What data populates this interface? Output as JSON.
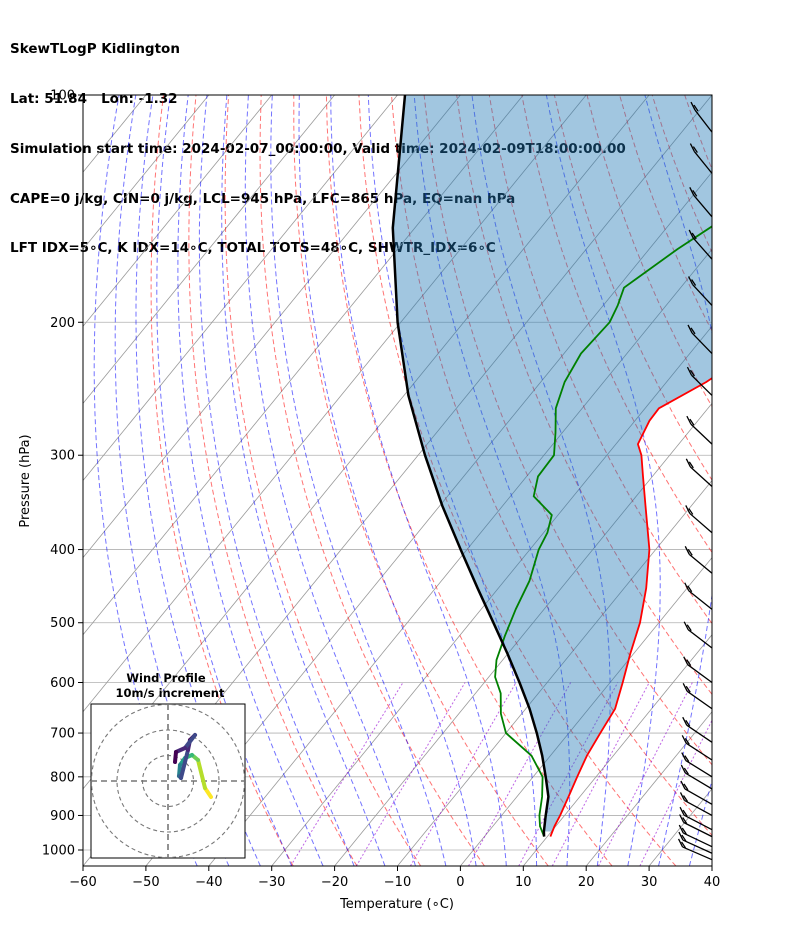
{
  "title_lines": [
    "SkewTLogP Kidlington",
    "Lat: 51.84   Lon: -1.32",
    "Simulation start time: 2024-02-07_00:00:00, Valid time: 2024-02-09T18:00:00.00",
    "CAPE=0 j/kg, CIN=0 j/kg, LCL=945 hPa, LFC=865 hPa, EQ=nan hPa",
    "LFT IDX=5∘C, K IDX=14∘C, TOTAL TOTS=48∘C, SHWTR_IDX=6∘C"
  ],
  "chart_data": {
    "type": "line",
    "xlabel": "Temperature (∘C)",
    "ylabel": "Pressure (hPa)",
    "xlim": [
      -60,
      40
    ],
    "ylim": [
      1050,
      100
    ],
    "y_scale": "log",
    "x_ticks": [
      -60,
      -50,
      -40,
      -30,
      -20,
      -10,
      0,
      10,
      20,
      30,
      40
    ],
    "x_tick_labels": [
      "−60",
      "−50",
      "−40",
      "−30",
      "−20",
      "−10",
      "0",
      "10",
      "20",
      "30",
      "40"
    ],
    "y_ticks": [
      1000,
      900,
      800,
      700,
      600,
      500,
      400,
      300,
      200,
      100
    ],
    "y_tick_labels": [
      "1000",
      "900",
      "800",
      "700",
      "600",
      "500",
      "400",
      "300",
      "200",
      "100"
    ],
    "grid": true,
    "colors": {
      "temperature": "#ff0000",
      "dewpoint": "#008000",
      "parcel": "#000000",
      "cape_fill": "#1f77b4",
      "dry_adiabat": "#ff0000",
      "moist_adiabat": "#0000ff",
      "mixing_ratio": "#9400d3",
      "isotherm": "#999999"
    },
    "series": [
      {
        "key": "temperature",
        "pressure": [
          960,
          930,
          900,
          850,
          800,
          750,
          700,
          650,
          600,
          550,
          500,
          450,
          400,
          350,
          320,
          300,
          290,
          270,
          260,
          240,
          220,
          200,
          180,
          165,
          150,
          140,
          130,
          120,
          110,
          100
        ],
        "temperature": [
          10.5,
          9.8,
          9.3,
          8.2,
          7.0,
          5.8,
          5.0,
          4.2,
          2.0,
          -0.5,
          -3.0,
          -6.5,
          -11.0,
          -17.3,
          -21.5,
          -24.5,
          -26.5,
          -27.7,
          -27.8,
          -23.7,
          -20.6,
          -18.5,
          -16.8,
          -16.3,
          -16.3,
          -16.1,
          -15.2,
          -14.5,
          -13.7,
          -11.1
        ]
      },
      {
        "key": "dewpoint",
        "pressure": [
          960,
          930,
          900,
          850,
          800,
          750,
          700,
          660,
          620,
          590,
          560,
          520,
          480,
          440,
          400,
          380,
          360,
          340,
          320,
          300,
          280,
          260,
          240,
          220,
          200,
          190,
          180,
          160,
          140,
          120,
          100
        ],
        "temperature": [
          9.5,
          7.5,
          6.0,
          4.0,
          1.5,
          -3.0,
          -10.0,
          -13.3,
          -16.0,
          -19.0,
          -21.0,
          -22.8,
          -24.5,
          -26.0,
          -28.6,
          -29.4,
          -31.0,
          -36.3,
          -38.2,
          -38.4,
          -41.1,
          -44.2,
          -46.2,
          -47.3,
          -46.8,
          -47.7,
          -49.0,
          -45.5,
          -40.6,
          -37.0,
          -33.7
        ]
      },
      {
        "key": "parcel",
        "pressure": [
          960,
          945,
          900,
          850,
          800,
          750,
          700,
          650,
          600,
          550,
          500,
          450,
          400,
          350,
          300,
          250,
          200,
          150,
          100
        ],
        "temperature": [
          9.5,
          8.8,
          7.0,
          5.0,
          2.0,
          -1.3,
          -5.1,
          -9.4,
          -14.4,
          -20.0,
          -26.3,
          -33.3,
          -41.0,
          -49.6,
          -58.9,
          -69.3,
          -80.5,
          -93.5,
          -108.8
        ]
      }
    ],
    "wind_barbs_label": "",
    "inset": {
      "title": "Wind Profile",
      "subtitle": "10m/s increment",
      "rings": 3
    }
  }
}
